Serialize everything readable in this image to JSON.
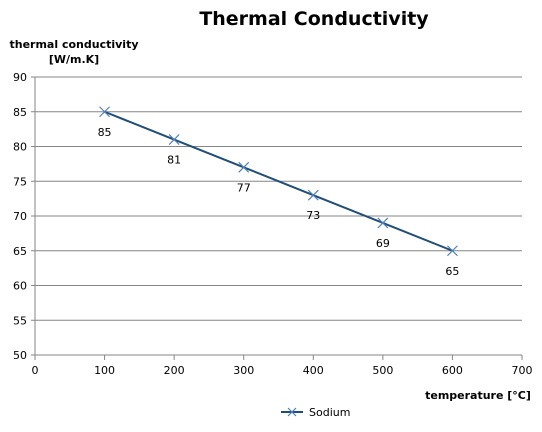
{
  "chart_data": {
    "type": "line",
    "title": "Thermal Conductivity",
    "ylabel": [
      "thermal conductivity",
      "[W/m.K]"
    ],
    "xlabel": "temperature [°C]",
    "xlim": [
      0,
      700
    ],
    "ylim": [
      50,
      90
    ],
    "x_ticks": [
      0,
      100,
      200,
      300,
      400,
      500,
      600,
      700
    ],
    "y_ticks": [
      50,
      55,
      60,
      65,
      70,
      75,
      80,
      85,
      90
    ],
    "grid": "horizontal",
    "legend_position": "bottom",
    "series": [
      {
        "name": "Sodium",
        "color": "#1F4E79",
        "marker": "x",
        "marker_color": "#4F81BD",
        "x": [
          100,
          200,
          300,
          400,
          500,
          600
        ],
        "values": [
          85,
          81,
          77,
          73,
          69,
          65
        ],
        "data_labels": [
          "85",
          "81",
          "77",
          "73",
          "69",
          "65"
        ]
      }
    ]
  }
}
